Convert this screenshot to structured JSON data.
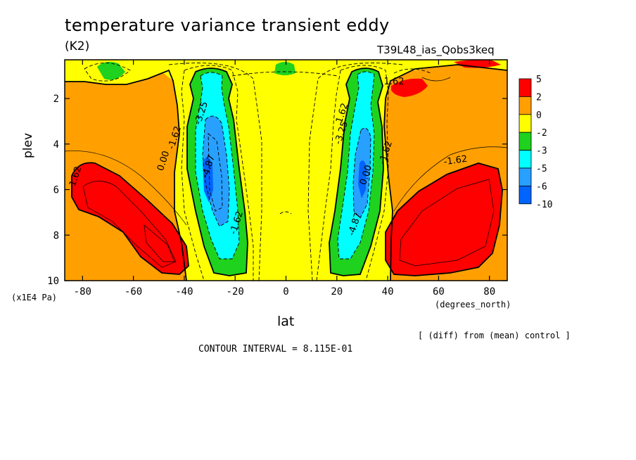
{
  "chart_data": {
    "type": "heatmap",
    "title": "temperature variance transient eddy",
    "units": "(K2)",
    "experiment": "T39L48_ias_Qobs3keq",
    "xlabel": "lat",
    "xunits": "(degrees_north)",
    "ylabel": "plev",
    "yunits": "(x1E4 Pa)",
    "xlim": [
      -87,
      87
    ],
    "ylim": [
      10,
      0.3
    ],
    "xticks": [
      "-80",
      "-60",
      "-40",
      "-20",
      "0",
      "20",
      "40",
      "60",
      "80"
    ],
    "yticks": [
      "2",
      "4",
      "6",
      "8",
      "10"
    ],
    "legend": {
      "labels": [
        "5",
        "2",
        "0",
        "-2",
        "-3",
        "-5",
        "-6",
        "-10"
      ],
      "colors": [
        "#ff0000",
        "#ffa000",
        "#ffff00",
        "#1ed21e",
        "#00ffff",
        "#28a0ff",
        "#0064ff"
      ]
    },
    "contour_labels": [
      "-3.25",
      "-1.62",
      "0.00",
      "1.62",
      "-4.87",
      "-1.62",
      "1.62",
      "-3.25",
      "-1.62",
      "0.00",
      "-4.87",
      "-1.62",
      "1.62"
    ],
    "contour_interval": "CONTOUR INTERVAL = 8.115E-01",
    "note": "[ (diff) from (mean) control ]"
  }
}
